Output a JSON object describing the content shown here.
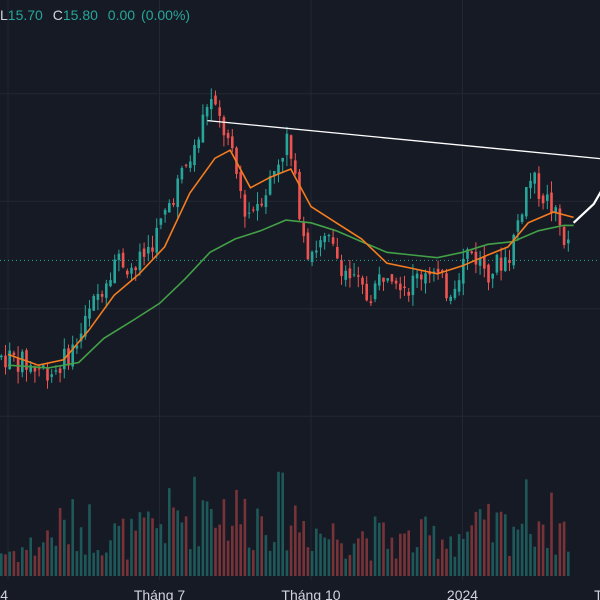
{
  "legend": {
    "low_key": "L",
    "low_value": "15.70",
    "close_key": "C",
    "close_value": "15.80",
    "change": "0.00",
    "change_pct": "(0.00%)",
    "color": "#26a69a"
  },
  "colors": {
    "background": "#161a25",
    "grid": "#232733",
    "up": "#26a69a",
    "down": "#ef5350",
    "ma_fast": "#f57c1f",
    "ma_slow": "#43a047",
    "trendline": "#ffffff",
    "last_price_line": "#26a69a"
  },
  "chart_data": {
    "type": "candlestick",
    "x_ticks": [
      {
        "label": "4",
        "month_index": 0
      },
      {
        "label": "Tháng 7",
        "month_index": 3
      },
      {
        "label": "Tháng 10",
        "month_index": 6
      },
      {
        "label": "2024",
        "month_index": 9
      },
      {
        "label": "Tháng",
        "month_index": 12
      }
    ],
    "price_range": [
      8,
      24
    ],
    "last_price": 15.8,
    "price_path": [
      [
        0,
        12.2
      ],
      [
        0.5,
        11.8
      ],
      [
        0.9,
        11.7
      ],
      [
        1.3,
        12.6
      ],
      [
        1.7,
        14.3
      ],
      [
        2.1,
        15.9
      ],
      [
        2.5,
        15.5
      ],
      [
        2.9,
        16.7
      ],
      [
        3.3,
        18.5
      ],
      [
        3.7,
        20.0
      ],
      [
        3.95,
        21.9
      ],
      [
        4.3,
        20.4
      ],
      [
        4.7,
        17.5
      ],
      [
        5.1,
        18.5
      ],
      [
        5.5,
        20.3
      ],
      [
        5.9,
        16.2
      ],
      [
        6.3,
        16.5
      ],
      [
        6.7,
        15.3
      ],
      [
        7.1,
        14.4
      ],
      [
        7.5,
        15.6
      ],
      [
        7.9,
        14.8
      ],
      [
        8.3,
        15.6
      ],
      [
        8.7,
        14.6
      ],
      [
        9.1,
        16.2
      ],
      [
        9.5,
        15.4
      ],
      [
        9.9,
        16.0
      ],
      [
        10.3,
        18.9
      ],
      [
        10.7,
        17.9
      ],
      [
        11.1,
        16.2
      ]
    ],
    "ma_fast": [
      [
        0,
        12.3
      ],
      [
        0.6,
        11.9
      ],
      [
        1.1,
        12.1
      ],
      [
        1.6,
        13.2
      ],
      [
        2.1,
        14.5
      ],
      [
        2.6,
        15.3
      ],
      [
        3.1,
        16.3
      ],
      [
        3.6,
        18.3
      ],
      [
        4.1,
        19.6
      ],
      [
        4.4,
        19.9
      ],
      [
        4.8,
        18.5
      ],
      [
        5.2,
        18.9
      ],
      [
        5.6,
        19.2
      ],
      [
        6.0,
        17.8
      ],
      [
        6.5,
        17.2
      ],
      [
        7.0,
        16.6
      ],
      [
        7.5,
        15.7
      ],
      [
        8.0,
        15.5
      ],
      [
        8.5,
        15.3
      ],
      [
        9.0,
        15.6
      ],
      [
        9.5,
        16.0
      ],
      [
        9.9,
        16.3
      ],
      [
        10.3,
        17.2
      ],
      [
        10.8,
        17.6
      ],
      [
        11.2,
        17.4
      ]
    ],
    "ma_slow": [
      [
        0,
        11.9
      ],
      [
        0.8,
        11.8
      ],
      [
        1.4,
        12.0
      ],
      [
        1.9,
        12.9
      ],
      [
        2.5,
        13.6
      ],
      [
        3.0,
        14.2
      ],
      [
        3.5,
        15.1
      ],
      [
        4.0,
        16.1
      ],
      [
        4.5,
        16.6
      ],
      [
        5.0,
        16.9
      ],
      [
        5.5,
        17.3
      ],
      [
        6.0,
        17.2
      ],
      [
        6.5,
        16.9
      ],
      [
        7.0,
        16.5
      ],
      [
        7.5,
        16.1
      ],
      [
        8.0,
        16.0
      ],
      [
        8.5,
        15.9
      ],
      [
        9.0,
        16.1
      ],
      [
        9.5,
        16.4
      ],
      [
        10.0,
        16.5
      ],
      [
        10.5,
        16.9
      ],
      [
        11.0,
        17.1
      ],
      [
        11.2,
        17.1
      ]
    ],
    "trendline": [
      [
        3.95,
        21.0
      ],
      [
        12.2,
        19.5
      ]
    ],
    "projection": [
      [
        11.2,
        17.2
      ],
      [
        11.6,
        17.9
      ],
      [
        12.0,
        19.2
      ],
      [
        12.3,
        20.6
      ]
    ],
    "volume_range": [
      0,
      100
    ],
    "volume_profile": [
      [
        0,
        18
      ],
      [
        0.5,
        22
      ],
      [
        1.0,
        35
      ],
      [
        1.5,
        38
      ],
      [
        2.0,
        30
      ],
      [
        2.5,
        28
      ],
      [
        3.0,
        40
      ],
      [
        3.5,
        45
      ],
      [
        4.0,
        58
      ],
      [
        4.3,
        48
      ],
      [
        4.8,
        42
      ],
      [
        5.3,
        50
      ],
      [
        5.8,
        40
      ],
      [
        6.3,
        30
      ],
      [
        6.8,
        32
      ],
      [
        7.3,
        28
      ],
      [
        7.8,
        25
      ],
      [
        8.3,
        28
      ],
      [
        8.8,
        30
      ],
      [
        9.3,
        33
      ],
      [
        9.8,
        35
      ],
      [
        10.3,
        48
      ],
      [
        10.8,
        38
      ],
      [
        11.2,
        30
      ]
    ]
  }
}
